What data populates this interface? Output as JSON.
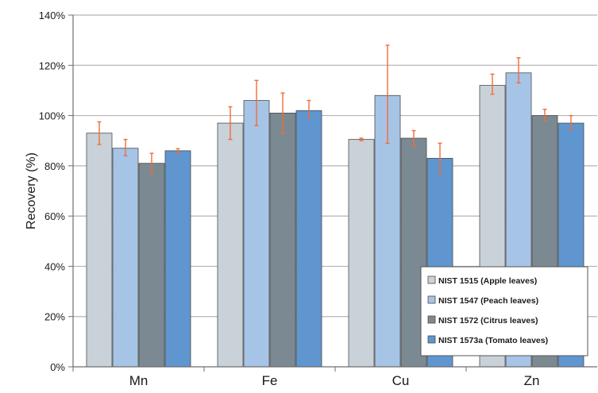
{
  "chart_data": {
    "type": "bar",
    "title": "",
    "xlabel": "",
    "ylabel": "Recovery (%)",
    "ylim": [
      0,
      140
    ],
    "yticks": [
      0,
      20,
      40,
      60,
      80,
      100,
      120,
      140
    ],
    "ytick_labels": [
      "0%",
      "20%",
      "40%",
      "60%",
      "80%",
      "100%",
      "120%",
      "140%"
    ],
    "grid": true,
    "legend_position": "bottom-right",
    "categories": [
      "Mn",
      "Fe",
      "Cu",
      "Zn"
    ],
    "series": [
      {
        "name": "NIST 1515 (Apple leaves)",
        "color": "#c9d2d8",
        "values": [
          93,
          97,
          90.5,
          112
        ],
        "err_low": [
          4.5,
          6.5,
          0.5,
          3.5
        ],
        "err_high": [
          4.5,
          6.5,
          0.5,
          4.5
        ]
      },
      {
        "name": "NIST 1547 (Peach leaves)",
        "color": "#a6c4e6",
        "values": [
          87,
          106,
          108,
          117
        ],
        "err_low": [
          3,
          10,
          19,
          4
        ],
        "err_high": [
          3.5,
          8,
          20,
          6
        ]
      },
      {
        "name": "NIST 1572 (Citrus leaves)",
        "color": "#7b8a92",
        "values": [
          81,
          101,
          91,
          100
        ],
        "err_low": [
          4,
          8,
          3,
          2
        ],
        "err_high": [
          4,
          8,
          3,
          2.5
        ]
      },
      {
        "name": "NIST 1573a (Tomato leaves)",
        "color": "#5f96cf",
        "values": [
          86,
          102,
          83,
          97
        ],
        "err_low": [
          0.8,
          3,
          6,
          2.5
        ],
        "err_high": [
          0.8,
          4,
          6,
          3
        ]
      }
    ],
    "colors": {
      "error_bar": "#f26b3a",
      "grid": "#b4b4b4",
      "axis": "#6e6e6e",
      "text": "#1a1a1a"
    }
  }
}
